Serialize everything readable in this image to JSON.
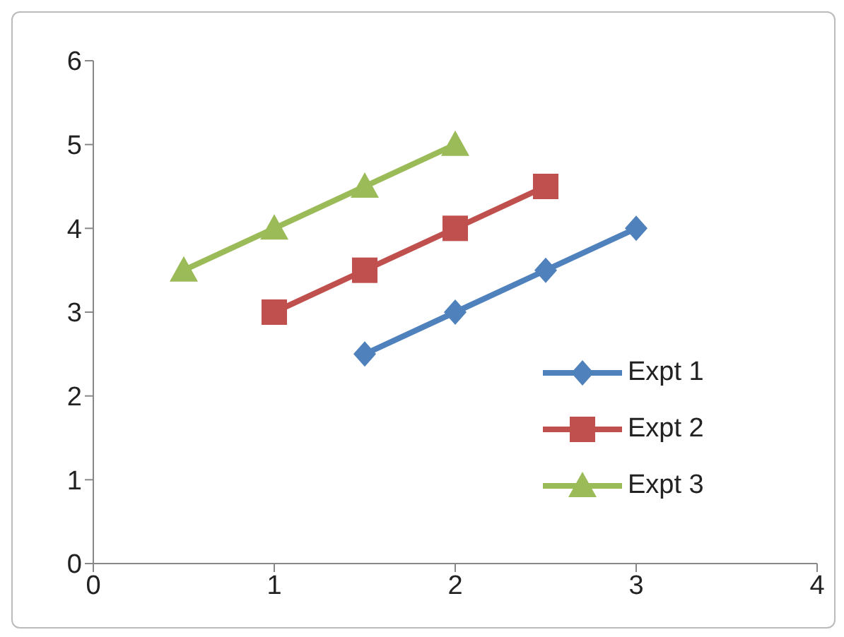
{
  "chart_data": {
    "type": "line",
    "xlim": [
      0,
      4
    ],
    "xticks": [
      0,
      1,
      2,
      3,
      4
    ],
    "ylim": [
      0,
      6
    ],
    "yticks": [
      0,
      1,
      2,
      3,
      4,
      5,
      6
    ],
    "grid": false,
    "legend": "right",
    "series": [
      {
        "name": "Expt 1",
        "color": "#4f81bd",
        "marker": "diamond",
        "x": [
          1.5,
          2,
          2.5,
          3
        ],
        "values": [
          2.5,
          3,
          3.5,
          4
        ]
      },
      {
        "name": "Expt 2",
        "color": "#c0504d",
        "marker": "square",
        "x": [
          1,
          1.5,
          2,
          2.5
        ],
        "values": [
          3,
          3.5,
          4,
          4.5
        ]
      },
      {
        "name": "Expt 3",
        "color": "#9bbb59",
        "marker": "triangle",
        "x": [
          0.5,
          1,
          1.5,
          2
        ],
        "values": [
          3.5,
          4,
          4.5,
          5
        ]
      }
    ]
  }
}
